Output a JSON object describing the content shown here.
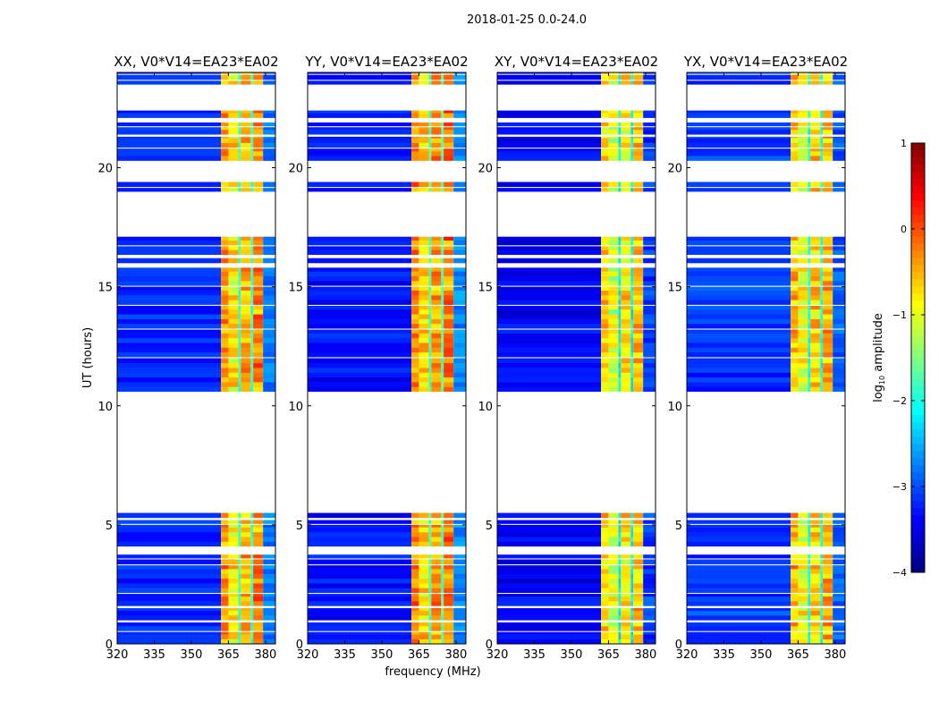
{
  "chart_data": {
    "type": "heatmap",
    "title": "2018-01-25 0.0-24.0",
    "xlabel": "frequency (MHz)",
    "ylabel": "UT (hours)",
    "xlim": [
      320,
      384
    ],
    "ylim": [
      0,
      24
    ],
    "xticks": [
      "320",
      "335",
      "350",
      "365",
      "380"
    ],
    "xtick_values": [
      320,
      335,
      350,
      365,
      380
    ],
    "yticks": [
      "0",
      "5",
      "10",
      "15",
      "20"
    ],
    "ytick_values": [
      0,
      5,
      10,
      15,
      20
    ],
    "panels": [
      {
        "title": "XX, V0*V14=EA23*EA02",
        "bg_level": -3.2,
        "band_offset": 0.0
      },
      {
        "title": "YY, V0*V14=EA23*EA02",
        "bg_level": -3.3,
        "band_offset": 0.1
      },
      {
        "title": "XY, V0*V14=EA23*EA02",
        "bg_level": -3.4,
        "band_offset": -0.3
      },
      {
        "title": "YX, V0*V14=EA23*EA02",
        "bg_level": -3.1,
        "band_offset": -0.15
      }
    ],
    "segments": [
      [
        0.0,
        0.5
      ],
      [
        0.55,
        0.9
      ],
      [
        1.0,
        1.5
      ],
      [
        1.6,
        2.1
      ],
      [
        2.15,
        3.3
      ],
      [
        3.35,
        3.55
      ],
      [
        3.6,
        3.75
      ],
      [
        4.1,
        5.0
      ],
      [
        5.05,
        5.2
      ],
      [
        5.3,
        5.5
      ],
      [
        10.6,
        12.0
      ],
      [
        12.05,
        13.2
      ],
      [
        13.25,
        14.2
      ],
      [
        14.25,
        15.0
      ],
      [
        15.05,
        15.8
      ],
      [
        16.0,
        16.2
      ],
      [
        16.35,
        16.7
      ],
      [
        16.75,
        17.1
      ],
      [
        19.0,
        19.15
      ],
      [
        19.2,
        19.4
      ],
      [
        20.3,
        20.8
      ],
      [
        20.85,
        21.3
      ],
      [
        21.4,
        21.7
      ],
      [
        21.75,
        21.9
      ],
      [
        22.1,
        22.4
      ],
      [
        23.5,
        23.65
      ],
      [
        23.7,
        23.9
      ],
      [
        23.95,
        24.0
      ]
    ],
    "bands": [
      {
        "f0": 320,
        "f1": 362,
        "level": null
      },
      {
        "f0": 362,
        "f1": 365,
        "level": -0.4
      },
      {
        "f0": 365,
        "f1": 369,
        "level": -0.8
      },
      {
        "f0": 369,
        "f1": 370,
        "level": -1.9
      },
      {
        "f0": 370,
        "f1": 374,
        "level": -0.5
      },
      {
        "f0": 374,
        "f1": 375,
        "level": -1.9
      },
      {
        "f0": 375,
        "f1": 379,
        "level": -0.3
      },
      {
        "f0": 379,
        "f1": 384,
        "level": -2.8
      }
    ],
    "colorbar": {
      "label_prefix": "log",
      "label_sub": "10",
      "label_suffix": " amplitude",
      "range": [
        -4,
        1
      ],
      "ticks": [
        "1",
        "0",
        "−1",
        "−2",
        "−3",
        "−4"
      ],
      "tick_values": [
        1,
        0,
        -1,
        -2,
        -3,
        -4
      ],
      "colormap": "jet"
    }
  }
}
